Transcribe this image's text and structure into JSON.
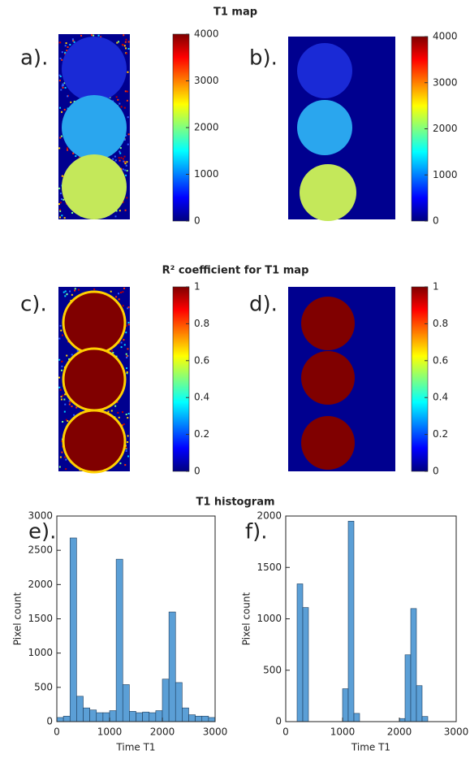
{
  "titles": [
    "T1 map",
    "R² coefficient for T1 map",
    "T1 histogram"
  ],
  "chart_data": [
    {
      "type": "image",
      "label": "a).",
      "colorbar": {
        "ylim": [
          0,
          4000
        ],
        "yticks": [
          0,
          1000,
          2000,
          3000,
          4000
        ]
      }
    },
    {
      "type": "image",
      "label": "b).",
      "colorbar": {
        "ylim": [
          0,
          4000
        ],
        "yticks": [
          0,
          1000,
          2000,
          3000,
          4000
        ]
      }
    },
    {
      "type": "image",
      "label": "c).",
      "colorbar": {
        "ylim": [
          0,
          1
        ],
        "yticks": [
          0,
          0.2,
          0.4,
          0.6,
          0.8,
          1
        ]
      }
    },
    {
      "type": "image",
      "label": "d).",
      "colorbar": {
        "ylim": [
          0,
          1
        ],
        "yticks": [
          0,
          0.2,
          0.4,
          0.6,
          0.8,
          1
        ]
      }
    },
    {
      "type": "histogram",
      "label": "e).",
      "xlabel": "Time T1",
      "ylabel": "Pixel count",
      "color": "#5b9fd6",
      "bins": [
        0,
        125,
        250,
        375,
        500,
        625,
        750,
        875,
        1000,
        1125,
        1250,
        1375,
        1500,
        1625,
        1750,
        1875,
        2000,
        2125,
        2250,
        2375,
        2500,
        2625,
        2750,
        2875,
        3000
      ],
      "values": [
        60,
        80,
        2680,
        370,
        200,
        170,
        130,
        130,
        160,
        2370,
        540,
        150,
        130,
        140,
        130,
        160,
        620,
        1600,
        570,
        200,
        100,
        80,
        80,
        60
      ],
      "xlim": [
        0,
        3000
      ],
      "xticks": [
        0,
        1000,
        2000,
        3000
      ],
      "ylim": [
        0,
        3000
      ],
      "yticks": [
        0,
        500,
        1000,
        1500,
        2000,
        2500,
        3000
      ]
    },
    {
      "type": "histogram",
      "label": "f).",
      "xlabel": "Time T1",
      "ylabel": "Pixel count",
      "color": "#5b9fd6",
      "bins": [
        0,
        100,
        200,
        300,
        400,
        500,
        600,
        700,
        800,
        900,
        1000,
        1100,
        1200,
        1300,
        1400,
        1500,
        1600,
        1700,
        1800,
        1900,
        2000,
        2100,
        2200,
        2300,
        2400,
        2500
      ],
      "values": [
        0,
        0,
        1340,
        1110,
        0,
        0,
        0,
        0,
        0,
        0,
        320,
        1950,
        80,
        0,
        0,
        0,
        0,
        0,
        0,
        0,
        30,
        650,
        1100,
        350,
        50
      ],
      "xlim": [
        0,
        3000
      ],
      "xticks": [
        0,
        1000,
        2000,
        3000
      ],
      "ylim": [
        0,
        2000
      ],
      "yticks": [
        0,
        500,
        1000,
        1500,
        2000
      ]
    }
  ]
}
